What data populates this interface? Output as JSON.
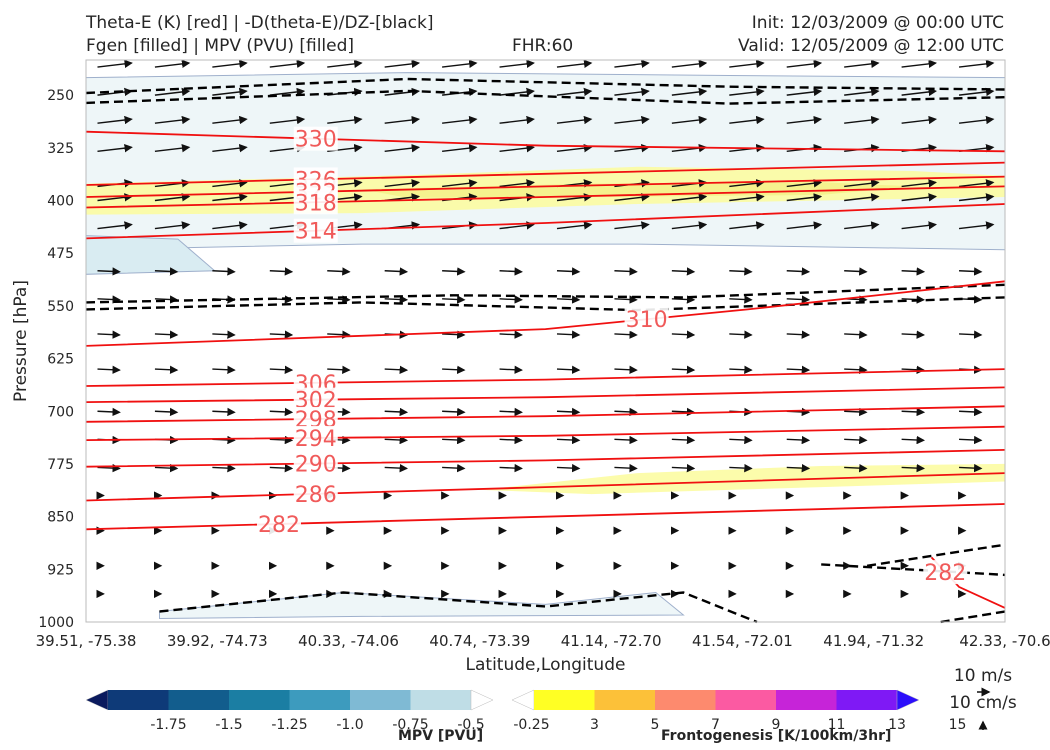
{
  "header": {
    "title_line1": "Theta-E (K) [red] | -D(theta-E)/DZ-[black]",
    "title_line2": "Fgen [filled] | MPV (PVU) [filled]",
    "fhr": "FHR:60",
    "init": "Init: 12/03/2009 @ 00:00 UTC",
    "valid": "Valid: 12/05/2009 @ 12:00 UTC"
  },
  "chart_data": {
    "type": "cross-section",
    "xlabel": "Latitude,Longitude",
    "ylabel": "Pressure [hPa]",
    "x_ticks": [
      "39.51, -75.38",
      "39.92, -74.73",
      "40.33, -74.06",
      "40.74, -73.39",
      "41.14, -72.70",
      "41.54, -72.01",
      "41.94, -71.32",
      "42.33, -70.6"
    ],
    "y_ticks": [
      250,
      325,
      400,
      475,
      550,
      625,
      700,
      775,
      850,
      925,
      1000
    ],
    "ylim": [
      1000,
      200
    ],
    "y_scale": "linear-pressure",
    "theta_e_contours": [
      {
        "value": 330,
        "label": "330",
        "points": [
          [
            0,
            302
          ],
          [
            0.5,
            322
          ],
          [
            1,
            330
          ]
        ]
      },
      {
        "value": 326,
        "label": "326",
        "points": [
          [
            0,
            378
          ],
          [
            0.5,
            362
          ],
          [
            1,
            346
          ]
        ]
      },
      {
        "value": 322,
        "label": "322",
        "points": [
          [
            0,
            395
          ],
          [
            0.5,
            380
          ],
          [
            1,
            366
          ]
        ]
      },
      {
        "value": 318,
        "label": "318",
        "points": [
          [
            0,
            410
          ],
          [
            0.5,
            395
          ],
          [
            1,
            380
          ]
        ]
      },
      {
        "value": 314,
        "label": "314",
        "points": [
          [
            0,
            454
          ],
          [
            0.5,
            432
          ],
          [
            1,
            405
          ]
        ]
      },
      {
        "value": 310,
        "label": "310",
        "points": [
          [
            0,
            607
          ],
          [
            0.5,
            583
          ],
          [
            0.72,
            555
          ],
          [
            1,
            515
          ]
        ]
      },
      {
        "value": 306,
        "label": "306",
        "points": [
          [
            0,
            664
          ],
          [
            0.5,
            655
          ],
          [
            1,
            640
          ]
        ]
      },
      {
        "value": 302,
        "label": "302",
        "points": [
          [
            0,
            687
          ],
          [
            0.5,
            680
          ],
          [
            1,
            666
          ]
        ]
      },
      {
        "value": 298,
        "label": "298",
        "points": [
          [
            0,
            715
          ],
          [
            0.5,
            707
          ],
          [
            1,
            693
          ]
        ]
      },
      {
        "value": 294,
        "label": "294",
        "points": [
          [
            0,
            741
          ],
          [
            0.5,
            735
          ],
          [
            1,
            722
          ]
        ]
      },
      {
        "value": 290,
        "label": "290",
        "points": [
          [
            0,
            779
          ],
          [
            0.5,
            770
          ],
          [
            1,
            755
          ]
        ]
      },
      {
        "value": 286,
        "label": "286",
        "points": [
          [
            0,
            827
          ],
          [
            0.5,
            808
          ],
          [
            1,
            788
          ]
        ]
      },
      {
        "value": 282,
        "label": "282",
        "points": [
          [
            0,
            868
          ],
          [
            0.42,
            853
          ],
          [
            1,
            832
          ]
        ]
      },
      {
        "value": 282,
        "label": "282",
        "points": [
          [
            0.92,
            908
          ],
          [
            0.95,
            950
          ],
          [
            1,
            980
          ]
        ]
      }
    ],
    "dthetae_dz_dashed": [
      {
        "points": [
          [
            0,
            247
          ],
          [
            0.35,
            227
          ],
          [
            0.7,
            238
          ],
          [
            1,
            242
          ]
        ]
      },
      {
        "points": [
          [
            0,
            261
          ],
          [
            0.35,
            244
          ],
          [
            0.7,
            262
          ],
          [
            1,
            253
          ]
        ]
      },
      {
        "points": [
          [
            0,
            545
          ],
          [
            0.4,
            535
          ],
          [
            0.65,
            538
          ],
          [
            1,
            520
          ]
        ]
      },
      {
        "points": [
          [
            0,
            555
          ],
          [
            0.3,
            545
          ],
          [
            0.6,
            556
          ],
          [
            1,
            538
          ]
        ]
      },
      {
        "points": [
          [
            0.08,
            985
          ],
          [
            0.28,
            958
          ],
          [
            0.5,
            978
          ],
          [
            0.65,
            958
          ],
          [
            0.73,
            1000
          ]
        ]
      },
      {
        "points": [
          [
            0.8,
            918
          ],
          [
            1,
            933
          ]
        ]
      },
      {
        "points": [
          [
            0.85,
            920
          ],
          [
            1,
            890
          ]
        ]
      },
      {
        "points": [
          [
            0.93,
            1000
          ],
          [
            1,
            985
          ]
        ]
      }
    ],
    "frontogenesis_fill": [
      {
        "color": "#fbfb9c",
        "points": [
          [
            0,
            376
          ],
          [
            0.35,
            364
          ],
          [
            0.6,
            352
          ],
          [
            0.9,
            358
          ],
          [
            1,
            365
          ],
          [
            1,
            395
          ],
          [
            0.6,
            405
          ],
          [
            0.3,
            418
          ],
          [
            0,
            420
          ]
        ]
      },
      {
        "color": "#f3f08a",
        "points": [
          [
            0.3,
            384
          ],
          [
            0.55,
            376
          ],
          [
            0.8,
            374
          ],
          [
            0.9,
            380
          ],
          [
            0.8,
            392
          ],
          [
            0.55,
            395
          ],
          [
            0.35,
            396
          ]
        ]
      },
      {
        "color": "#fbfb9c",
        "points": [
          [
            0.43,
            812
          ],
          [
            0.6,
            788
          ],
          [
            0.8,
            778
          ],
          [
            1,
            775
          ],
          [
            1,
            800
          ],
          [
            0.8,
            808
          ],
          [
            0.55,
            818
          ]
        ]
      }
    ],
    "mpv_fill": [
      {
        "color": "#eef6f8",
        "points": [
          [
            0,
            225
          ],
          [
            0.35,
            218
          ],
          [
            0.7,
            222
          ],
          [
            1,
            225
          ],
          [
            1,
            470
          ],
          [
            0.6,
            462
          ],
          [
            0.3,
            462
          ],
          [
            0,
            470
          ]
        ]
      },
      {
        "color": "#d9ecf2",
        "points": [
          [
            0,
            450
          ],
          [
            0.1,
            455
          ],
          [
            0.14,
            500
          ],
          [
            0,
            505
          ]
        ]
      },
      {
        "color": "#eef6f8",
        "points": [
          [
            0.08,
            985
          ],
          [
            0.28,
            958
          ],
          [
            0.5,
            975
          ],
          [
            0.62,
            958
          ],
          [
            0.65,
            990
          ],
          [
            0.3,
            992
          ],
          [
            0.08,
            995
          ]
        ]
      }
    ],
    "wind_barbs": {
      "rows_hpa": [
        210,
        250,
        290,
        330,
        380,
        400,
        440,
        500,
        540,
        590,
        640,
        700,
        740,
        780,
        820,
        870,
        920,
        960
      ],
      "columns": 16
    },
    "colorbars": [
      {
        "label": "MPV [PVU]",
        "ticks": [
          "-1.75",
          "-1.5",
          "-1.25",
          "-1.0",
          "-0.75",
          "-0.5",
          "-0.25"
        ],
        "colors": [
          "#0b1b5e",
          "#0e3a78",
          "#125d8d",
          "#1b7ea3",
          "#3d9bbe",
          "#7fbad4",
          "#bfdde6",
          "#ffffff"
        ]
      },
      {
        "label": "Frontogenesis [K/100km/3hr]",
        "ticks": [
          "3",
          "5",
          "7",
          "9",
          "11",
          "13",
          "15"
        ],
        "colors": [
          "#ffffff",
          "#ffff24",
          "#fcc139",
          "#fd8a6e",
          "#fb5aa2",
          "#c624d8",
          "#7f19f5",
          "#2d0ffb"
        ]
      }
    ],
    "wind_scale": {
      "horizontal": "10 m/s",
      "vertical": "10 cm/s"
    }
  }
}
